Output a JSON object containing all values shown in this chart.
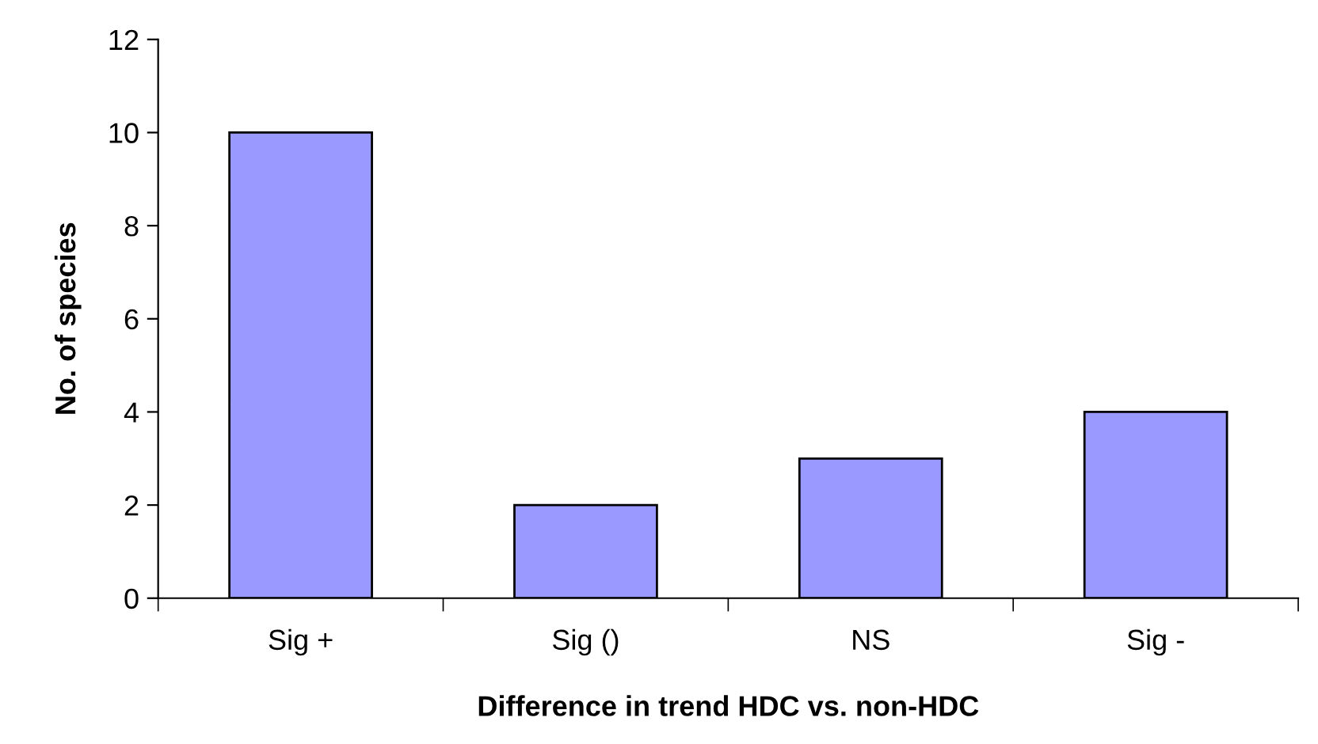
{
  "chart_data": {
    "type": "bar",
    "xlabel": "Difference in trend HDC vs. non-HDC",
    "ylabel": "No. of species",
    "categories": [
      "Sig +",
      "Sig ()",
      "NS",
      "Sig -"
    ],
    "values": [
      10,
      2,
      3,
      4
    ],
    "color": "#9999ff",
    "ylim": [
      0,
      12
    ],
    "yticks": [
      0,
      2,
      4,
      6,
      8,
      10,
      12
    ],
    "grid": false,
    "legend": false
  }
}
